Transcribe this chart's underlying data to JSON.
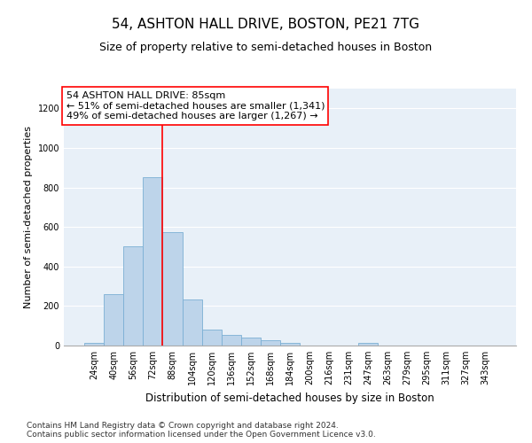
{
  "title": "54, ASHTON HALL DRIVE, BOSTON, PE21 7TG",
  "subtitle": "Size of property relative to semi-detached houses in Boston",
  "xlabel": "Distribution of semi-detached houses by size in Boston",
  "ylabel": "Number of semi-detached properties",
  "categories": [
    "24sqm",
    "40sqm",
    "56sqm",
    "72sqm",
    "88sqm",
    "104sqm",
    "120sqm",
    "136sqm",
    "152sqm",
    "168sqm",
    "184sqm",
    "200sqm",
    "216sqm",
    "231sqm",
    "247sqm",
    "263sqm",
    "279sqm",
    "295sqm",
    "311sqm",
    "327sqm",
    "343sqm"
  ],
  "values": [
    15,
    260,
    500,
    850,
    575,
    235,
    80,
    55,
    40,
    25,
    15,
    0,
    0,
    0,
    15,
    0,
    0,
    0,
    0,
    0,
    0
  ],
  "bar_color": "#bdd4ea",
  "bar_edgecolor": "#7bafd4",
  "vline_color": "red",
  "vline_x_index": 3.5,
  "annotation_text": "54 ASHTON HALL DRIVE: 85sqm\n← 51% of semi-detached houses are smaller (1,341)\n49% of semi-detached houses are larger (1,267) →",
  "annotation_box_color": "white",
  "annotation_box_edgecolor": "red",
  "ylim": [
    0,
    1300
  ],
  "yticks": [
    0,
    200,
    400,
    600,
    800,
    1000,
    1200
  ],
  "background_color": "#e8f0f8",
  "footer_text": "Contains HM Land Registry data © Crown copyright and database right 2024.\nContains public sector information licensed under the Open Government Licence v3.0.",
  "title_fontsize": 11,
  "subtitle_fontsize": 9,
  "annotation_fontsize": 8,
  "footer_fontsize": 6.5,
  "ylabel_fontsize": 8,
  "xlabel_fontsize": 8.5,
  "tick_fontsize": 7
}
